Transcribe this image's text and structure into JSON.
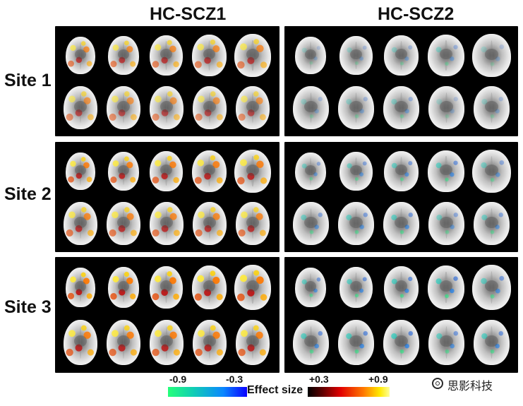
{
  "headers": {
    "col1": "HC-SCZ1",
    "col2": "HC-SCZ2",
    "rows": [
      "Site 1",
      "Site 2",
      "Site 3"
    ]
  },
  "legend": {
    "neg_min": "-0.9",
    "neg_max": "-0.3",
    "title": "Effect size",
    "pos_min": "+0.3",
    "pos_max": "+0.9",
    "colors": {
      "negative": [
        "#25ff7a",
        "#11d1b0",
        "#0a87ff",
        "#0a00ff"
      ],
      "positive": [
        "#000000",
        "#5e0000",
        "#e10000",
        "#ff7800",
        "#ffea00",
        "#ffff9a"
      ]
    }
  },
  "watermark": {
    "text": "思影科技"
  }
}
